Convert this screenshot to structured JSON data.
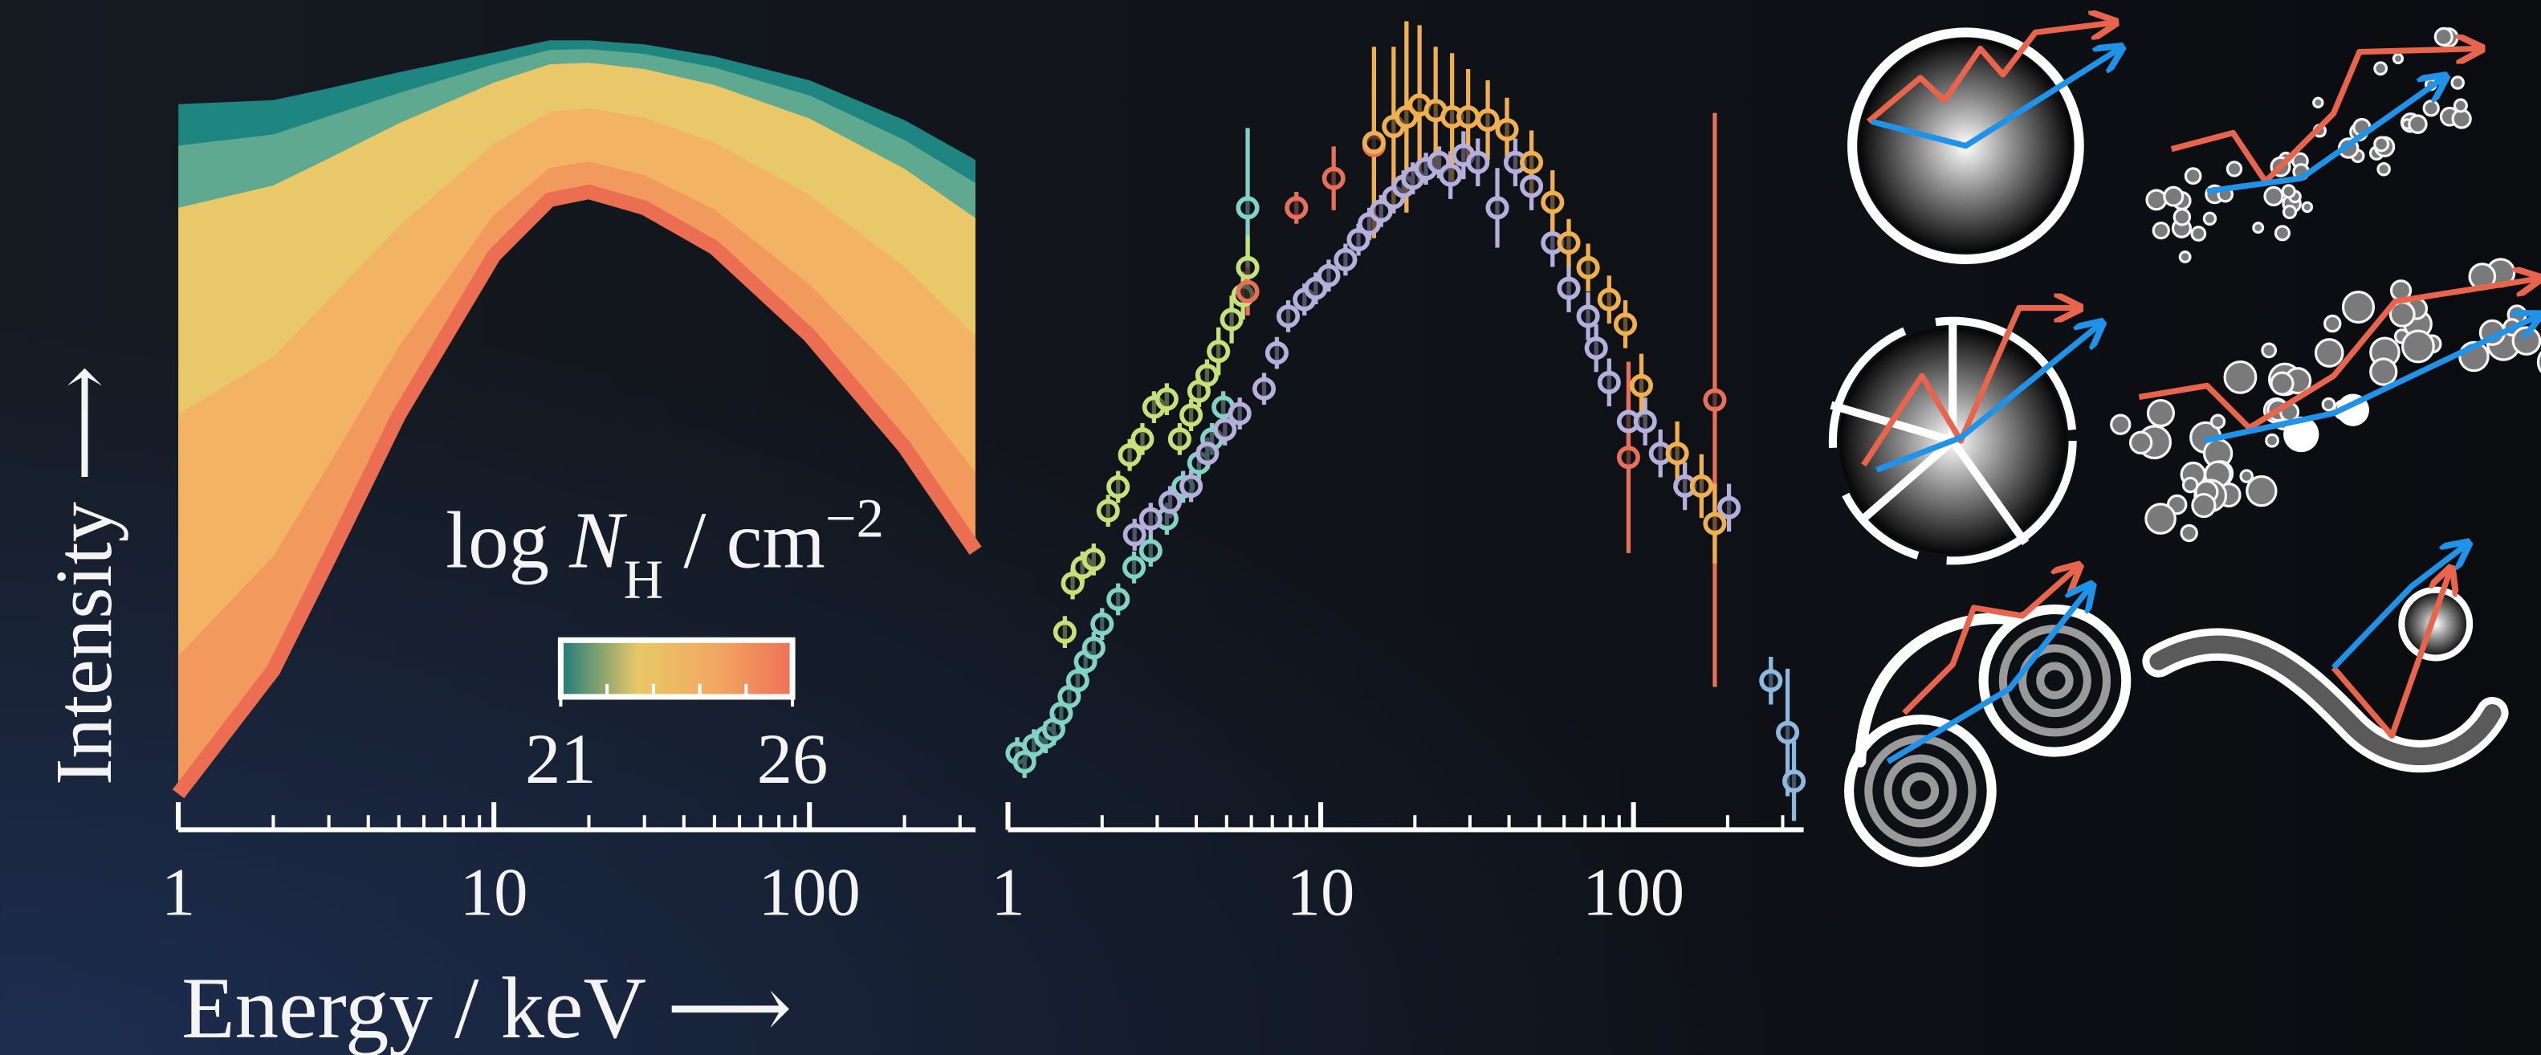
{
  "chart_data": [
    {
      "type": "area",
      "xlabel": "Energy / keV ⟶",
      "ylabel": "Intensity ⟶",
      "xscale": "log",
      "xlim": [
        1,
        336
      ],
      "xticks": [
        1,
        10,
        100
      ],
      "xminorticks": [
        2,
        3,
        4,
        5,
        6,
        7,
        8,
        9,
        20,
        30,
        40,
        50,
        60,
        70,
        80,
        90,
        200,
        300
      ],
      "ylim": [
        0,
        100
      ],
      "x": [
        1,
        2,
        3,
        5,
        10,
        15,
        20,
        30,
        50,
        100,
        200,
        336
      ],
      "series": [
        {
          "color": "#1f8580",
          "values": [
            91,
            91.5,
            93,
            95,
            97.5,
            99,
            99,
            98.5,
            97,
            94,
            89,
            84
          ]
        },
        {
          "color": "#5ea98f",
          "values": [
            85.8,
            87.2,
            89.5,
            92.4,
            96.0,
            97.8,
            97.9,
            97.3,
            95.6,
            92.1,
            86.5,
            81.1
          ]
        },
        {
          "color": "#e8c868",
          "values": [
            78.0,
            80.8,
            84.2,
            88.6,
            93.7,
            96.0,
            96.2,
            95.4,
            93.4,
            89.2,
            82.9,
            76.7
          ]
        },
        {
          "color": "#f2b464",
          "values": [
            52.1,
            59.3,
            66.5,
            75.7,
            86.0,
            90.0,
            90.5,
            89.3,
            86.2,
            79.6,
            70.6,
            61.9
          ]
        },
        {
          "color": "#f29a5e",
          "values": [
            21.8,
            34.3,
            45.8,
            60.6,
            77.1,
            83.0,
            83.8,
            82.1,
            77.8,
            68.4,
            56.2,
            44.8
          ]
        },
        {
          "color": "#eb6d52",
          "values": [
            4.5,
            20,
            34,
            52,
            72,
            79,
            80,
            78,
            73,
            62,
            48,
            35
          ]
        }
      ],
      "colorbar": {
        "label": [
          "log ",
          "N",
          "H",
          " / cm",
          "−2"
        ],
        "lim": [
          21,
          26
        ],
        "ticks": [
          21,
          26
        ],
        "minorticks": [
          22,
          23,
          24,
          25
        ],
        "colors": [
          "#1f7b7a",
          "#e8c866",
          "#f2a862",
          "#ef7057"
        ]
      }
    },
    {
      "type": "errorbar",
      "xscale": "log",
      "xlim": [
        1,
        350
      ],
      "xticks": [
        1,
        10,
        100
      ],
      "xminorticks": [
        2,
        3,
        4,
        5,
        6,
        7,
        8,
        9,
        20,
        30,
        40,
        50,
        60,
        70,
        80,
        90,
        200,
        300
      ],
      "ylim": [
        0,
        100
      ],
      "series": [
        {
          "color": "#82d2c6",
          "x": [
            1.07,
            1.13,
            1.21,
            1.32,
            1.4,
            1.48,
            1.57,
            1.67,
            1.77,
            1.88,
            2.0,
            2.25,
            2.53,
            2.86,
            3.22,
            3.63,
            4.08,
            4.49,
            4.88,
            5.84
          ],
          "values": [
            9.6,
            8.5,
            10.6,
            11.6,
            12.6,
            14.6,
            16.7,
            18.7,
            21.1,
            22.8,
            25.8,
            28.9,
            32.9,
            35.0,
            39.0,
            43.0,
            46.0,
            49.0,
            53.0,
            78.0
          ],
          "yerr": [
            2,
            2,
            2,
            2,
            2,
            2,
            2,
            2,
            2,
            2,
            2,
            2,
            2,
            2,
            2,
            2,
            2,
            2,
            2,
            10
          ]
        },
        {
          "color": "#c6e07a",
          "x": [
            1.52,
            1.61,
            1.73,
            1.88,
            2.09,
            2.25,
            2.45,
            2.69,
            2.93,
            3.22,
            3.54,
            3.85,
            4.08,
            4.33,
            4.71,
            5.19,
            5.64,
            5.84
          ],
          "values": [
            24.8,
            30.9,
            32.9,
            33.9,
            40.0,
            43.0,
            47.0,
            49.0,
            53.0,
            54.0,
            49.0,
            52.0,
            55.0,
            57.0,
            60.0,
            64.0,
            67.0,
            70.5
          ],
          "yerr": [
            2,
            2,
            2,
            2,
            2,
            2,
            2,
            2,
            2,
            2,
            2,
            2,
            2,
            2,
            3,
            3,
            3,
            4
          ]
        },
        {
          "color": "#b6aedb",
          "x": [
            2.54,
            2.86,
            3.3,
            3.85,
            4.34,
            4.94,
            5.51,
            6.59,
            7.24,
            7.87,
            8.87,
            9.64,
            10.6,
            12.0,
            13.2,
            14.3,
            15.6,
            17.1,
            18.4,
            19.7,
            21.7,
            23.9,
            26.0,
            28.6,
            31.8,
            36.7,
            41.9,
            47.2,
            55.1,
            62.1,
            71.6,
            76.0,
            83.6,
            96.4,
            109,
            122,
            146,
            202
          ],
          "values": [
            37.0,
            39.0,
            41.1,
            43.1,
            47.2,
            50.2,
            52.2,
            55.3,
            59.8,
            64.4,
            66.5,
            67.9,
            69.5,
            71.5,
            74.0,
            76.0,
            77.6,
            79.3,
            80.7,
            81.7,
            82.9,
            83.7,
            82.1,
            84.6,
            83.7,
            78.0,
            83.7,
            80.7,
            73.6,
            67.9,
            64.4,
            60.4,
            56.1,
            51.2,
            51.2,
            47.2,
            43.1,
            40.4
          ],
          "yerr": [
            2,
            2,
            2,
            2,
            2,
            2,
            2,
            2,
            2,
            2,
            2,
            2,
            2,
            2,
            2,
            2,
            2,
            2,
            2,
            2,
            2,
            2,
            3,
            3,
            3,
            5,
            3,
            3,
            3,
            3,
            3,
            3,
            3,
            3,
            3,
            3,
            3,
            3
          ]
        },
        {
          "color": "#e8705a",
          "x": [
            5.84,
            8.36,
            11.0,
            14.8,
            96.4,
            182
          ],
          "values": [
            67.5,
            78.0,
            81.7,
            85.8,
            46.7,
            53.9
          ],
          "yerr": [
            3,
            2,
            4,
            8,
            12,
            36
          ]
        },
        {
          "color": "#f0b050",
          "x": [
            14.8,
            17.1,
            18.8,
            20.7,
            23.3,
            26.3,
            29.6,
            34.2,
            39.4,
            47.2,
            55.1,
            62.1,
            71.6,
            83.6,
            94.2,
            106,
            138,
            165,
            182
          ],
          "values": [
            86.2,
            88.2,
            89.4,
            90.9,
            90.2,
            89.4,
            89.4,
            89.0,
            87.8,
            83.7,
            78.7,
            73.6,
            70.5,
            66.5,
            63.4,
            55.7,
            47.2,
            43.1,
            38.4
          ],
          "yerr": [
            12,
            10,
            12,
            10,
            8,
            8,
            6,
            5,
            4,
            4,
            4,
            3,
            3,
            3,
            3,
            4,
            4,
            4,
            5
          ]
        },
        {
          "color": "#8fb8df",
          "x": [
            275,
            311,
            326
          ],
          "values": [
            18.7,
            12.2,
            6.1
          ],
          "yerr": [
            3,
            8,
            5
          ]
        }
      ]
    }
  ]
}
